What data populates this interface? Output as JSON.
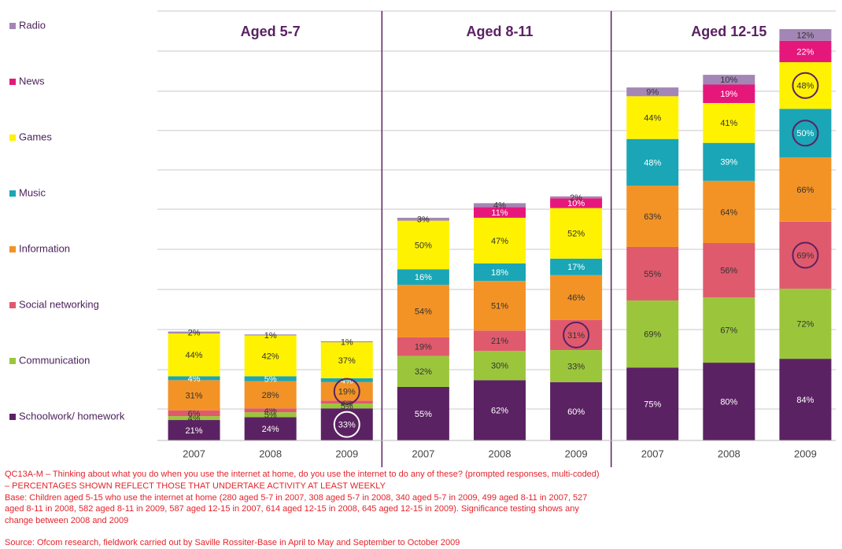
{
  "chart_data": {
    "type": "stacked_bar",
    "groups": [
      "Aged 5-7",
      "Aged 8-11",
      "Aged 12-15"
    ],
    "categories": [
      "2007",
      "2008",
      "2009",
      "2007",
      "2008",
      "2009",
      "2007",
      "2008",
      "2009"
    ],
    "ylim": [
      0,
      440
    ],
    "series": [
      {
        "name": "Schoolwork/ homework",
        "color": "#5b2263",
        "label_color": "#ffffff",
        "values": [
          21,
          24,
          33,
          55,
          62,
          60,
          75,
          80,
          84
        ],
        "value_labels": [
          "21%",
          "24%",
          "33%",
          "55%",
          "62%",
          "60%",
          "75%",
          "80%",
          "84%"
        ],
        "circled": [
          false,
          false,
          true,
          false,
          false,
          false,
          false,
          false,
          false
        ]
      },
      {
        "name": "Communication",
        "color": "#9bc63c",
        "label_color": "#333333",
        "values": [
          4,
          5,
          5,
          32,
          30,
          33,
          69,
          67,
          72
        ],
        "value_labels": [
          "4%",
          "5%",
          "5%",
          "32%",
          "30%",
          "33%",
          "69%",
          "67%",
          "72%"
        ],
        "circled": [
          false,
          false,
          false,
          false,
          false,
          false,
          false,
          false,
          false
        ]
      },
      {
        "name": "Social networking",
        "color": "#e05a6d",
        "label_color": "#333333",
        "values": [
          6,
          4,
          3,
          19,
          21,
          31,
          55,
          56,
          69
        ],
        "value_labels": [
          "6%",
          "4%",
          "3%",
          "19%",
          "21%",
          "31%",
          "55%",
          "56%",
          "69%"
        ],
        "circled": [
          false,
          false,
          false,
          false,
          false,
          true,
          false,
          false,
          true
        ]
      },
      {
        "name": "Information",
        "color": "#f39326",
        "label_color": "#333333",
        "values": [
          31,
          28,
          19,
          54,
          51,
          46,
          63,
          64,
          66
        ],
        "value_labels": [
          "31%",
          "28%",
          "19%",
          "54%",
          "51%",
          "46%",
          "63%",
          "64%",
          "66%"
        ],
        "circled": [
          false,
          false,
          true,
          false,
          false,
          false,
          false,
          false,
          false
        ]
      },
      {
        "name": "Music",
        "color": "#1aa6b6",
        "label_color": "#ffffff",
        "values": [
          4,
          5,
          4,
          16,
          18,
          17,
          48,
          39,
          50
        ],
        "value_labels": [
          "4%",
          "5%",
          "4%",
          "16%",
          "18%",
          "17%",
          "48%",
          "39%",
          "50%"
        ],
        "circled": [
          false,
          false,
          false,
          false,
          false,
          false,
          false,
          false,
          true
        ]
      },
      {
        "name": "Games",
        "color": "#fff200",
        "label_color": "#333333",
        "values": [
          44,
          42,
          37,
          50,
          47,
          52,
          44,
          41,
          48
        ],
        "value_labels": [
          "44%",
          "42%",
          "37%",
          "50%",
          "47%",
          "52%",
          "44%",
          "41%",
          "48%"
        ],
        "circled": [
          false,
          false,
          false,
          false,
          false,
          false,
          false,
          false,
          true
        ]
      },
      {
        "name": "News",
        "color": "#e6177b",
        "label_color": "#ffffff",
        "values": [
          null,
          null,
          null,
          null,
          11,
          10,
          null,
          19,
          22
        ],
        "value_labels": [
          null,
          null,
          null,
          null,
          "11%",
          "10%",
          null,
          "19%",
          "22%"
        ],
        "circled": [
          false,
          false,
          false,
          false,
          false,
          false,
          false,
          false,
          false
        ]
      },
      {
        "name": "Radio",
        "color": "#a386b5",
        "label_color": "#333333",
        "values": [
          2,
          1,
          1,
          3,
          4,
          2,
          9,
          10,
          12
        ],
        "value_labels": [
          "2%",
          "1%",
          "1%",
          "3%",
          "4%",
          "2%",
          "9%",
          "10%",
          "12%"
        ],
        "circled": [
          false,
          false,
          false,
          false,
          false,
          false,
          false,
          false,
          false
        ]
      }
    ],
    "notes": [
      "QC13A-M – Thinking about what you do when you use the internet at home, do you use the internet to do any of these?  (prompted responses, multi-coded)",
      "– PERCENTAGES SHOWN REFLECT THOSE THAT UNDERTAKE ACTIVITY AT LEAST WEEKLY",
      "Base: Children aged 5-15 who use the internet at home (280 aged 5-7 in 2007, 308 aged 5-7 in 2008, 340 aged 5-7 in 2009, 499 aged 8-11 in 2007, 527",
      "aged 8-11 in 2008, 582 aged 8-11 in 2009, 587 aged 12-15 in 2007, 614 aged 12-15 in 2008, 645 aged 12-15 in 2009). Significance testing shows any",
      "change between 2008 and 2009",
      "Source: Ofcom research, fieldwork carried out by Saville Rossiter-Base in April to May and September to October 2009"
    ]
  }
}
